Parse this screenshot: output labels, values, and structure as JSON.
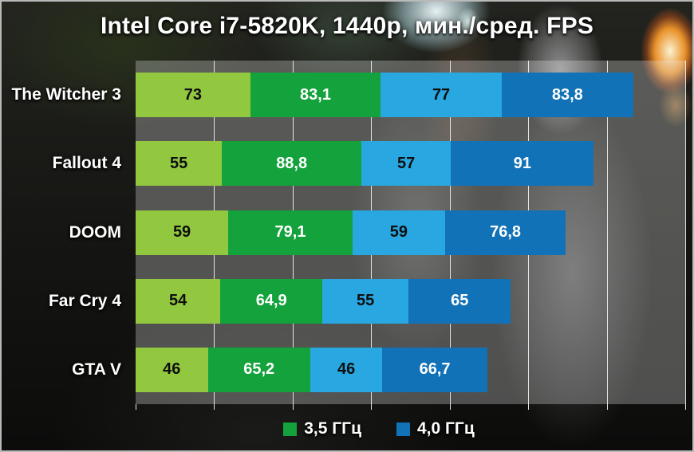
{
  "chart_data": {
    "type": "bar",
    "orientation": "horizontal-stacked",
    "title": "Intel Core i7-5820K, 1440p, мин./сред. FPS",
    "categories": [
      "The Witcher 3",
      "Fallout 4",
      "DOOM",
      "Far Cry 4",
      "GTA V"
    ],
    "series": [
      {
        "name": "3,5 ГГц мин. FPS",
        "color": "#92c83f",
        "text_color": "#0e0e0e",
        "values": [
          73,
          55,
          59,
          54,
          46
        ],
        "labels": [
          "73",
          "55",
          "59",
          "54",
          "46"
        ]
      },
      {
        "name": "3,5 ГГц сред. FPS",
        "color": "#14a23c",
        "text_color": "#ffffff",
        "values": [
          83.1,
          88.8,
          79.1,
          64.9,
          65.2
        ],
        "labels": [
          "83,1",
          "88,8",
          "79,1",
          "64,9",
          "65,2"
        ]
      },
      {
        "name": "4,0 ГГц мин. FPS",
        "color": "#29a7e1",
        "text_color": "#0e0e0e",
        "values": [
          77,
          57,
          59,
          55,
          46
        ],
        "labels": [
          "77",
          "57",
          "59",
          "55",
          "46"
        ]
      },
      {
        "name": "4,0 ГГц сред. FPS",
        "color": "#1172b8",
        "text_color": "#ffffff",
        "values": [
          83.8,
          91,
          76.8,
          65,
          66.7
        ],
        "labels": [
          "83,8",
          "91",
          "76,8",
          "65",
          "66,7"
        ]
      }
    ],
    "legend": [
      {
        "label": "3,5 ГГц",
        "color": "#14a23c"
      },
      {
        "label": "4,0 ГГц",
        "color": "#1172b8"
      }
    ],
    "axis": {
      "min": 0,
      "max": 350,
      "gridline_step": 50,
      "grid": true,
      "gridline_color": "#ffffff",
      "legend_position": "bottom"
    }
  }
}
